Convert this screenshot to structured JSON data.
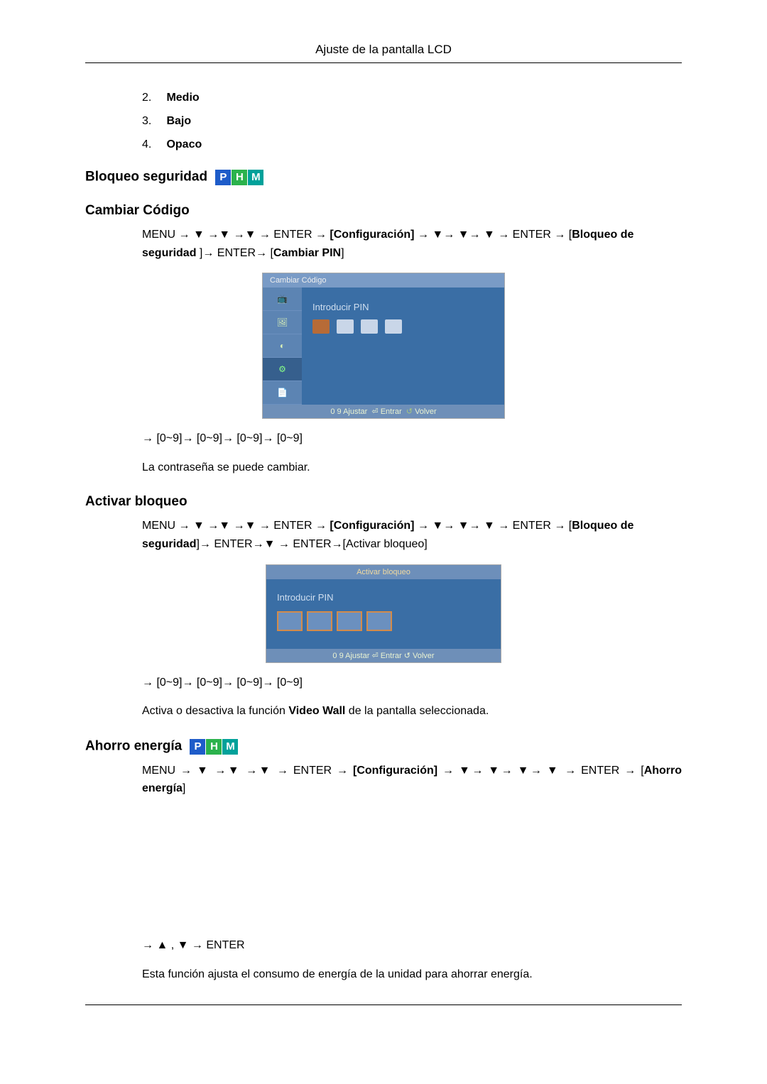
{
  "header": {
    "title": "Ajuste de la pantalla LCD"
  },
  "list": {
    "items": [
      {
        "num": "2.",
        "label": "Medio"
      },
      {
        "num": "3.",
        "label": "Bajo"
      },
      {
        "num": "4.",
        "label": "Opaco"
      }
    ]
  },
  "sect_bloqueo": {
    "title": "Bloqueo seguridad",
    "phm": {
      "p": "P",
      "h": "H",
      "m": "M"
    }
  },
  "sect_cambiar": {
    "title": "Cambiar Código",
    "nav_pre": "MENU → ▼ →▼ →▼ → ENTER → ",
    "nav_config": "[Configuración]",
    "nav_mid": " → ▼→ ▼→ ▼ → ENTER → [",
    "nav_bold1": "Bloqueo de seguridad ",
    "nav_post1": "]→ ENTER→ [",
    "nav_bold2": "Cambiar PIN",
    "nav_post2": "]",
    "seq": "→ [0~9]→ [0~9]→ [0~9]→ [0~9]",
    "note": "La contraseña se puede cambiar."
  },
  "ss1": {
    "title": "Cambiar Código",
    "pinlabel": "Introducir PIN",
    "foot_l": "0    9  Ajustar",
    "foot_m": "Entrar",
    "foot_r": "Volver",
    "icons": {
      "i1": "📺",
      "i2": "🖼",
      "i3": "◐",
      "i4": "⚙",
      "i5": "📄"
    }
  },
  "sect_activar": {
    "title": "Activar bloqueo",
    "nav_pre": "MENU → ▼ →▼ →▼ → ENTER → ",
    "nav_config": "[Configuración]",
    "nav_mid": " → ▼→ ▼→ ▼ → ENTER → [",
    "nav_bold1": "Bloqueo de seguridad",
    "nav_post1": "]→ ENTER→▼ → ENTER→[Activar bloqueo]",
    "seq": "→ [0~9]→ [0~9]→ [0~9]→ [0~9]",
    "note_pre": "Activa o desactiva la función ",
    "note_bold": "Video Wall",
    "note_post": " de la pantalla seleccionada."
  },
  "ss2": {
    "title": "Activar bloqueo",
    "pinlabel": "Introducir PIN",
    "foot": "0    9  Ajustar   ⏎ Entrar   ↺ Volver"
  },
  "sect_ahorro": {
    "title": "Ahorro energía",
    "phm": {
      "p": "P",
      "h": "H",
      "m": "M"
    },
    "nav_pre": "MENU  →  ▼  →▼  →▼  →  ENTER  →  ",
    "nav_config": "[Configuración]",
    "nav_mid": "  →  ▼→  ▼→  ▼→  ▼  →  ENTER  → [",
    "nav_bold": "Ahorro energía",
    "nav_post": "]",
    "seq": "→ ▲ , ▼ → ENTER",
    "note": "Esta función ajusta el consumo de energía de la unidad para ahorrar energía."
  }
}
